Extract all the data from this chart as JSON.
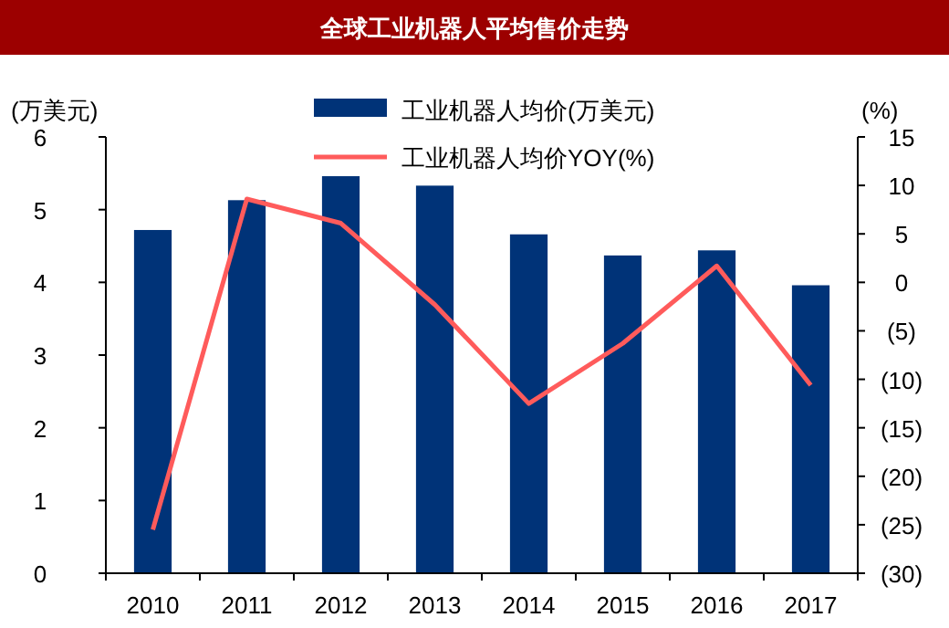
{
  "chart_data": {
    "type": "bar",
    "title": "全球工业机器人平均售价走势",
    "ylabel": "(万美元)",
    "y2label": "(%)",
    "categories": [
      "2010",
      "2011",
      "2012",
      "2013",
      "2014",
      "2015",
      "2016",
      "2017"
    ],
    "series": [
      {
        "name": "工业机器人均价(万美元)",
        "color": "#003378",
        "values": [
          4.72,
          5.13,
          5.46,
          5.33,
          4.66,
          4.37,
          4.44,
          3.96
        ]
      },
      {
        "name": "工业机器人均价YOY(%)",
        "type": "line",
        "axis": "y2",
        "color": "#ff5b5b",
        "values": [
          -25.5,
          8.6,
          6.1,
          -2.3,
          -12.5,
          -6.3,
          1.7,
          -10.6
        ]
      }
    ],
    "ylim": [
      0,
      6
    ],
    "yticks": [
      0,
      1,
      2,
      3,
      4,
      5,
      6
    ],
    "y2lim": [
      -30,
      15
    ],
    "y2ticks": [
      {
        "value": -30,
        "label": "(30)"
      },
      {
        "value": -25,
        "label": "(25)"
      },
      {
        "value": -20,
        "label": "(20)"
      },
      {
        "value": -15,
        "label": "(15)"
      },
      {
        "value": -10,
        "label": "(10)"
      },
      {
        "value": -5,
        "label": "(5)"
      },
      0,
      5,
      10,
      15
    ],
    "legend": "top",
    "grid": false,
    "marker": "none"
  }
}
